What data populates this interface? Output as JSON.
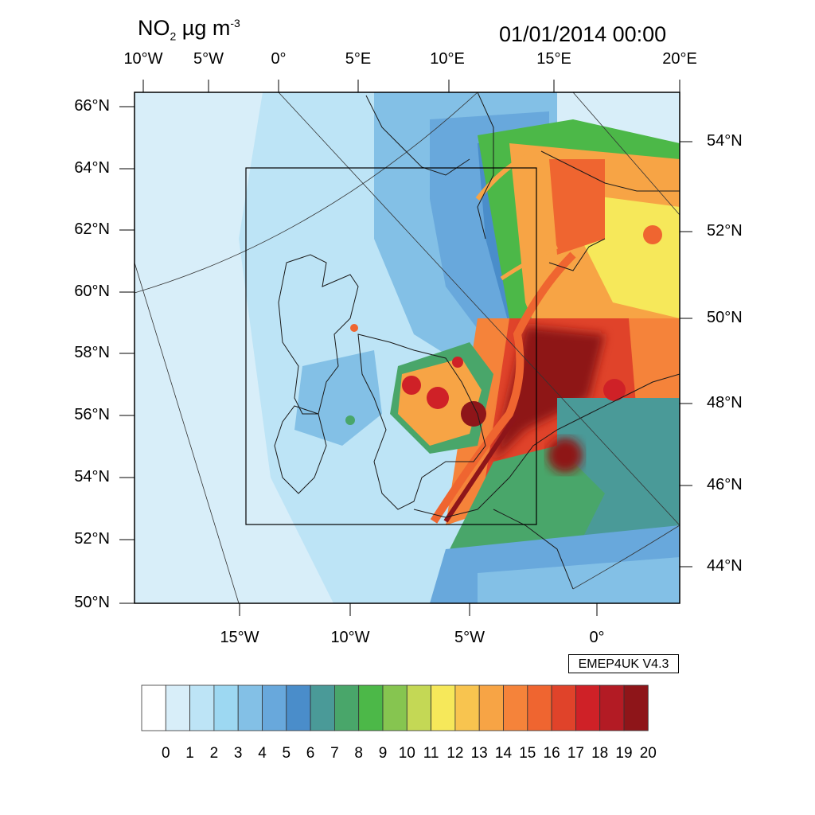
{
  "title": {
    "variable": "NO",
    "variable_sub": "2",
    "units": " µg m",
    "units_sup": "-3",
    "datetime": "01/01/2014 00:00"
  },
  "model_label": "EMEP4UK V4.3",
  "axes": {
    "top_lon_labels": [
      "10°W",
      "5°W",
      "0°",
      "5°E",
      "10°E",
      "15°E",
      "20°E"
    ],
    "left_lat_labels": [
      "66°N",
      "64°N",
      "62°N",
      "60°N",
      "58°N",
      "56°N",
      "54°N",
      "52°N",
      "50°N"
    ],
    "right_lat_labels": [
      "54°N",
      "52°N",
      "50°N",
      "48°N",
      "46°N",
      "44°N"
    ],
    "bottom_lon_labels": [
      "15°W",
      "10°W",
      "5°W",
      "0°"
    ]
  },
  "colorbar": {
    "tick_labels": [
      "0",
      "1",
      "2",
      "3",
      "4",
      "5",
      "6",
      "7",
      "8",
      "9",
      "10",
      "11",
      "12",
      "13",
      "14",
      "15",
      "16",
      "17",
      "18",
      "19",
      "20"
    ],
    "colors": [
      "#ffffff",
      "#d8eef9",
      "#bde4f6",
      "#9dd8f2",
      "#83c0e6",
      "#68a8dc",
      "#4a8dca",
      "#4a9a98",
      "#49a66a",
      "#4cb848",
      "#86c550",
      "#c4d855",
      "#f6e85a",
      "#f8c44f",
      "#f7a445",
      "#f5833a",
      "#ef6530",
      "#e0432a",
      "#cf2127",
      "#b31b24",
      "#8e1519"
    ]
  },
  "map_colors": {
    "sea_far": "#d8eef9",
    "sea_near": "#bde4f6",
    "land_outline": "#1a1a1a"
  }
}
